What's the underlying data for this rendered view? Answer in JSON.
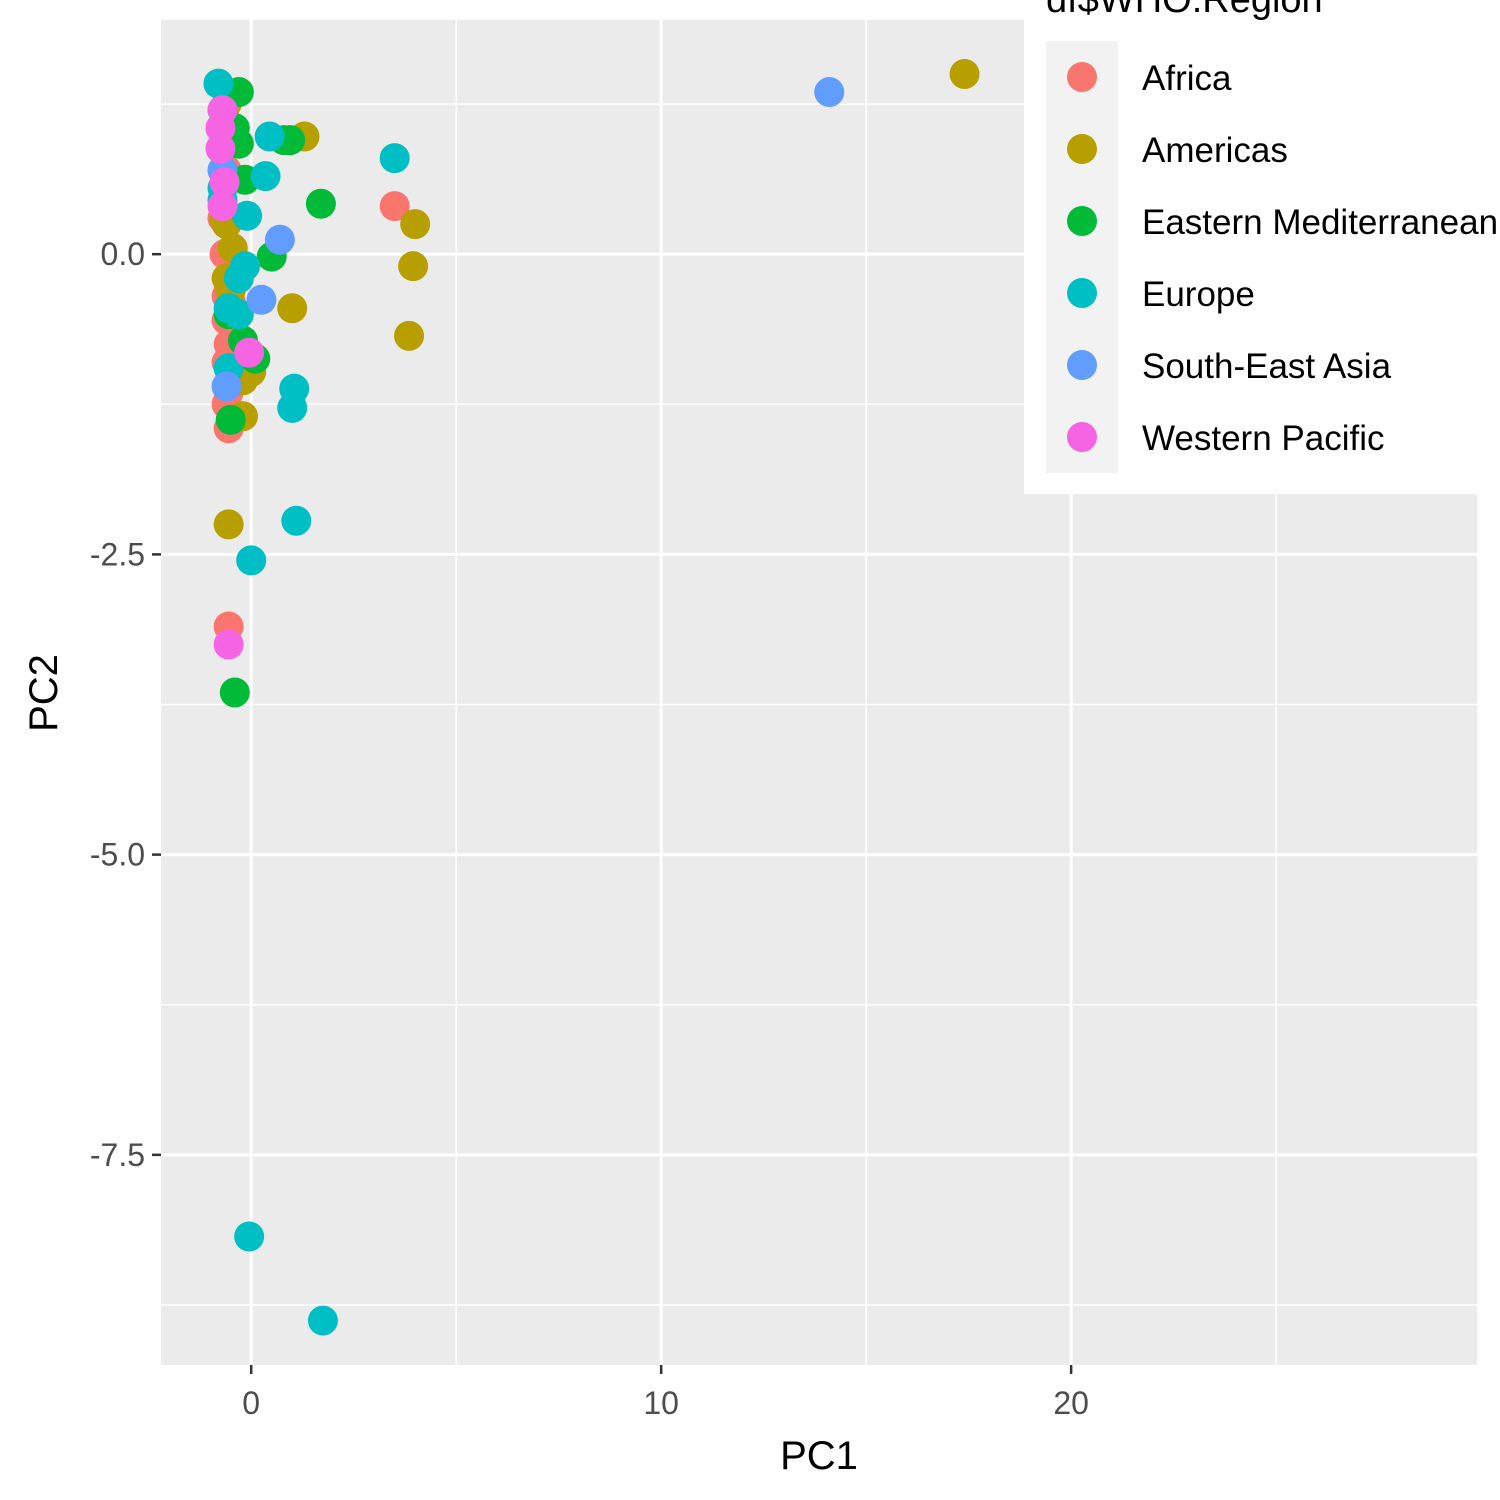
{
  "chart_data": {
    "type": "scatter",
    "title": "",
    "xlabel": "PC1",
    "ylabel": "PC2",
    "xlim": [
      -2.2,
      29.9
    ],
    "ylim": [
      -9.25,
      1.95
    ],
    "x_ticks": [
      0,
      10,
      20
    ],
    "x_tick_labels": [
      "0",
      "10",
      "20"
    ],
    "y_ticks": [
      0.0,
      -2.5,
      -5.0,
      -7.5
    ],
    "y_tick_labels": [
      "0.0",
      "-2.5",
      "-5.0",
      "-7.5"
    ],
    "x_minor_ticks": [
      5,
      15,
      25
    ],
    "y_minor_ticks": [
      1.25,
      -1.25,
      -3.75,
      -6.25,
      -8.75
    ],
    "grid": true,
    "legend": {
      "title": "df$WHO.Region",
      "position": "top-right",
      "entries": [
        "Africa",
        "Americas",
        "Eastern Mediterranean",
        "Europe",
        "South-East Asia",
        "Western Pacific"
      ]
    },
    "colors": {
      "Africa": "#F8766D",
      "Americas": "#B79F00",
      "Eastern Mediterranean": "#00BA38",
      "Europe": "#00BFC4",
      "South-East Asia": "#619CFF",
      "Western Pacific": "#F564E3"
    },
    "series": [
      {
        "name": "Africa",
        "points": [
          [
            -0.65,
            1.05
          ],
          [
            -0.6,
            0.7
          ],
          [
            -0.7,
            0.3
          ],
          [
            -0.65,
            0.0
          ],
          [
            -0.55,
            -0.3
          ],
          [
            -0.6,
            -0.55
          ],
          [
            -0.55,
            -0.75
          ],
          [
            -0.6,
            -0.9
          ],
          [
            -0.55,
            -1.15
          ],
          [
            -0.6,
            -1.25
          ],
          [
            -0.55,
            -1.45
          ],
          [
            -0.6,
            -0.35
          ],
          [
            -0.5,
            -0.4
          ],
          [
            -0.55,
            -3.1
          ],
          [
            3.5,
            0.4
          ]
        ]
      },
      {
        "name": "Americas",
        "points": [
          [
            17.4,
            1.5
          ],
          [
            1.3,
            0.98
          ],
          [
            4.0,
            0.25
          ],
          [
            3.95,
            -0.1
          ],
          [
            3.85,
            -0.68
          ],
          [
            1.0,
            -0.45
          ],
          [
            -0.65,
            0.3
          ],
          [
            -0.6,
            -0.2
          ],
          [
            -0.45,
            0.05
          ],
          [
            -0.5,
            -0.3
          ],
          [
            -0.2,
            -1.05
          ],
          [
            0.0,
            -0.98
          ],
          [
            -0.2,
            -1.35
          ],
          [
            -0.55,
            -2.25
          ],
          [
            -0.6,
            1.25
          ],
          [
            -0.6,
            0.25
          ]
        ]
      },
      {
        "name": "Eastern Mediterranean",
        "points": [
          [
            -0.3,
            1.35
          ],
          [
            -0.45,
            1.05
          ],
          [
            -0.3,
            0.92
          ],
          [
            0.8,
            0.95
          ],
          [
            0.95,
            0.95
          ],
          [
            1.7,
            0.42
          ],
          [
            -0.15,
            0.62
          ],
          [
            0.5,
            -0.02
          ],
          [
            -0.2,
            -0.72
          ],
          [
            0.1,
            -0.87
          ],
          [
            -0.55,
            -0.5
          ],
          [
            -0.5,
            -1.38
          ],
          [
            -0.4,
            -3.65
          ],
          [
            -0.4,
            1.05
          ]
        ]
      },
      {
        "name": "Europe",
        "points": [
          [
            -0.8,
            1.42
          ],
          [
            -0.7,
            1.2
          ],
          [
            0.45,
            0.98
          ],
          [
            3.5,
            0.8
          ],
          [
            0.35,
            0.65
          ],
          [
            -0.7,
            0.45
          ],
          [
            -0.1,
            0.32
          ],
          [
            -0.7,
            0.55
          ],
          [
            -0.15,
            -0.1
          ],
          [
            -0.3,
            -0.2
          ],
          [
            -0.3,
            -0.5
          ],
          [
            -0.55,
            -0.45
          ],
          [
            -0.55,
            -0.95
          ],
          [
            1.05,
            -1.12
          ],
          [
            1.0,
            -1.28
          ],
          [
            1.1,
            -2.22
          ],
          [
            0.0,
            -2.55
          ],
          [
            -0.05,
            -8.18
          ],
          [
            1.75,
            -8.88
          ]
        ]
      },
      {
        "name": "South-East Asia",
        "points": [
          [
            14.1,
            1.35
          ],
          [
            0.7,
            0.12
          ],
          [
            0.25,
            -0.38
          ],
          [
            -0.6,
            -1.1
          ],
          [
            -0.7,
            0.7
          ]
        ]
      },
      {
        "name": "Western Pacific",
        "points": [
          [
            -0.7,
            1.2
          ],
          [
            -0.75,
            1.05
          ],
          [
            -0.75,
            0.88
          ],
          [
            -0.65,
            0.6
          ],
          [
            -0.7,
            0.4
          ],
          [
            -0.05,
            -0.82
          ],
          [
            -0.55,
            -3.25
          ]
        ]
      }
    ]
  }
}
